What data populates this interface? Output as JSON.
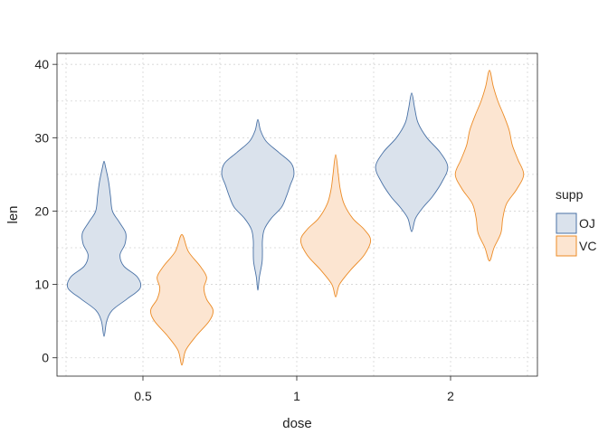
{
  "chart_data": {
    "type": "violin",
    "xlabel": "dose",
    "ylabel": "len",
    "categories": [
      "0.5",
      "1",
      "2"
    ],
    "ylim": [
      -2.5,
      41.5
    ],
    "yticks": [
      0,
      10,
      20,
      30,
      40
    ],
    "grid": true,
    "legend": {
      "title": "supp",
      "position": "right",
      "items": [
        {
          "label": "OJ",
          "fill": "#dae2ec",
          "stroke": "#4a72a6"
        },
        {
          "label": "VC",
          "fill": "#fce5d1",
          "stroke": "#ec8b25"
        }
      ]
    },
    "series": [
      {
        "name": "OJ",
        "fill": "#dae2ec",
        "stroke": "#4a72a6",
        "violins": [
          {
            "category": "0.5",
            "profile": [
              [
                2.9,
                0.0
              ],
              [
                5,
                0.07
              ],
              [
                6.5,
                0.22
              ],
              [
                8,
                0.6
              ],
              [
                9.5,
                0.95
              ],
              [
                11,
                0.88
              ],
              [
                12.5,
                0.52
              ],
              [
                14,
                0.42
              ],
              [
                15.5,
                0.55
              ],
              [
                17,
                0.57
              ],
              [
                18.5,
                0.4
              ],
              [
                20,
                0.22
              ],
              [
                22,
                0.17
              ],
              [
                24,
                0.12
              ],
              [
                26,
                0.04
              ],
              [
                26.8,
                0.0
              ]
            ]
          },
          {
            "category": "1",
            "profile": [
              [
                9.2,
                0.0
              ],
              [
                11,
                0.04
              ],
              [
                13,
                0.11
              ],
              [
                14.5,
                0.12
              ],
              [
                16,
                0.12
              ],
              [
                17.5,
                0.17
              ],
              [
                19,
                0.35
              ],
              [
                20.5,
                0.62
              ],
              [
                22,
                0.75
              ],
              [
                23.5,
                0.85
              ],
              [
                25,
                0.95
              ],
              [
                26.5,
                0.88
              ],
              [
                28,
                0.55
              ],
              [
                29.5,
                0.22
              ],
              [
                31,
                0.07
              ],
              [
                32.5,
                0.0
              ]
            ]
          },
          {
            "category": "2",
            "profile": [
              [
                17.2,
                0.0
              ],
              [
                19,
                0.1
              ],
              [
                20.5,
                0.3
              ],
              [
                22,
                0.55
              ],
              [
                24,
                0.8
              ],
              [
                26,
                0.95
              ],
              [
                28,
                0.75
              ],
              [
                30,
                0.4
              ],
              [
                32,
                0.17
              ],
              [
                34,
                0.08
              ],
              [
                36.1,
                0.0
              ]
            ]
          }
        ]
      },
      {
        "name": "VC",
        "fill": "#fce5d1",
        "stroke": "#ec8b25",
        "violins": [
          {
            "category": "0.5",
            "profile": [
              [
                -1,
                0.0
              ],
              [
                1,
                0.1
              ],
              [
                3,
                0.38
              ],
              [
                5,
                0.72
              ],
              [
                6.5,
                0.82
              ],
              [
                8,
                0.65
              ],
              [
                9.5,
                0.58
              ],
              [
                11,
                0.65
              ],
              [
                12.5,
                0.48
              ],
              [
                14.5,
                0.17
              ],
              [
                16.8,
                0.0
              ]
            ]
          },
          {
            "category": "1",
            "profile": [
              [
                8.3,
                0.0
              ],
              [
                10,
                0.1
              ],
              [
                12,
                0.4
              ],
              [
                14,
                0.75
              ],
              [
                16,
                0.92
              ],
              [
                17.5,
                0.75
              ],
              [
                19,
                0.45
              ],
              [
                21,
                0.22
              ],
              [
                23,
                0.12
              ],
              [
                25,
                0.07
              ],
              [
                27.7,
                0.0
              ]
            ]
          },
          {
            "category": "2",
            "profile": [
              [
                13.2,
                0.0
              ],
              [
                15,
                0.12
              ],
              [
                17,
                0.3
              ],
              [
                19,
                0.35
              ],
              [
                21,
                0.45
              ],
              [
                23,
                0.72
              ],
              [
                25,
                0.9
              ],
              [
                27,
                0.75
              ],
              [
                29,
                0.6
              ],
              [
                31,
                0.52
              ],
              [
                33,
                0.38
              ],
              [
                35,
                0.22
              ],
              [
                37,
                0.1
              ],
              [
                39.2,
                0.0
              ]
            ]
          }
        ]
      }
    ]
  }
}
